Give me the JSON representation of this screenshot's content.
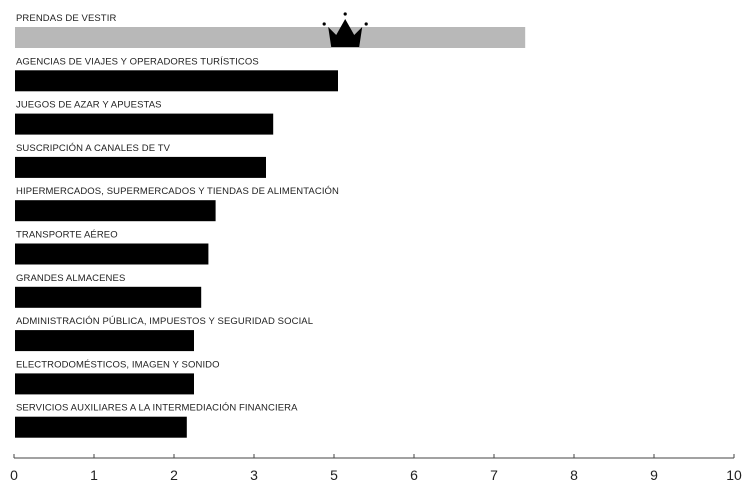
{
  "chart_data": {
    "type": "bar",
    "orientation": "horizontal",
    "categories": [
      "PRENDAS DE VESTIR",
      "AGENCIAS DE VIAJES Y OPERADORES TURÍSTICOS",
      "JUEGOS DE AZAR Y APUESTAS",
      "SUSCRIPCIÓN A CANALES DE TV",
      "HIPERMERCADOS, SUPERMERCADOS Y TIENDAS DE ALIMENTACIÓN",
      "TRANSPORTE AÉREO",
      "GRANDES ALMACENES",
      "ADMINISTRACIÓN PÚBLICA, IMPUESTOS Y SEGURIDAD SOCIAL",
      "ELECTRODOMÉSTICOS, IMAGEN Y SONIDO",
      "SERVICIOS AUXILIARES A LA INTERMEDIACIÓN FINANCIERA"
    ],
    "values": [
      7.1,
      4.5,
      3.6,
      3.5,
      2.8,
      2.7,
      2.6,
      2.5,
      2.5,
      2.4
    ],
    "highlight_index": 0,
    "highlight_icon": "crown-icon",
    "colors": {
      "highlight": "#b8b8b8",
      "bar": "#000000",
      "axis": "#444444",
      "text": "#222222"
    },
    "xlim": [
      0,
      10
    ],
    "xticks": [
      0,
      1,
      2,
      3,
      5,
      6,
      7,
      8,
      9,
      10
    ],
    "grid": false,
    "title": "",
    "xlabel": "",
    "ylabel": ""
  }
}
